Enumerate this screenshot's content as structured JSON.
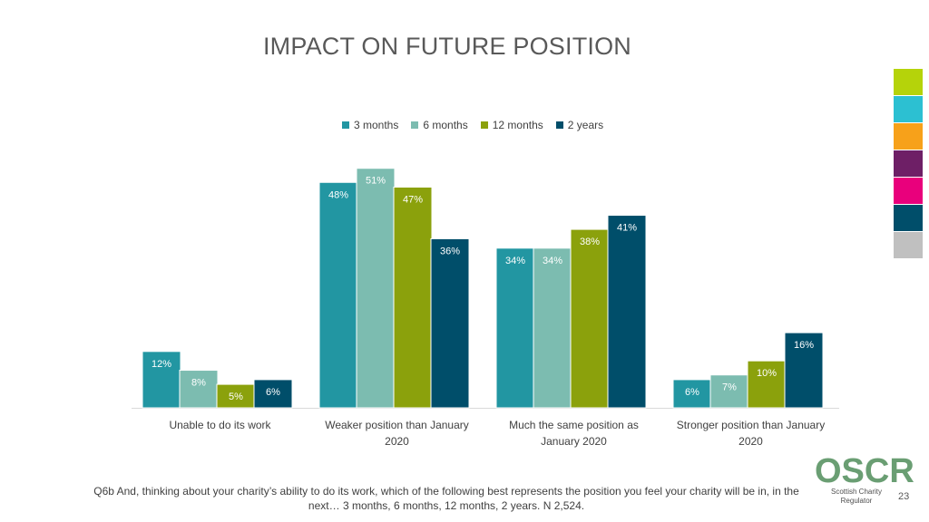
{
  "title": "IMPACT ON FUTURE POSITION",
  "chart_data": {
    "type": "bar",
    "title": "IMPACT ON FUTURE POSITION",
    "categories": [
      [
        "Unable to do its work"
      ],
      [
        "Weaker position than January",
        "2020"
      ],
      [
        "Much the same position as",
        "January 2020"
      ],
      [
        "Stronger position than January",
        "2020"
      ]
    ],
    "series": [
      {
        "name": "3 months",
        "color": "#2296a2",
        "values": [
          12,
          48,
          34,
          6
        ]
      },
      {
        "name": "6 months",
        "color": "#7cbcb0",
        "values": [
          8,
          51,
          34,
          7
        ]
      },
      {
        "name": "12 months",
        "color": "#8ba10c",
        "values": [
          5,
          47,
          38,
          10
        ]
      },
      {
        "name": "2 years",
        "color": "#004e6a",
        "values": [
          6,
          36,
          41,
          16
        ]
      }
    ],
    "value_suffix": "%",
    "xlabel": "",
    "ylabel": "",
    "ylim": [
      0,
      55
    ],
    "grid": false,
    "legend": "top-center"
  },
  "footnote": "Q6b And, thinking about your charity’s ability to do its work, which of the following best represents the position you feel your charity will be in, in the next… 3 months, 6 months, 12 months, 2 years. N 2,524.",
  "logo": {
    "name": "OSCR",
    "subtitle": "Scottish Charity Regulator"
  },
  "page_number": "23",
  "color_strip": [
    "#b5d30a",
    "#2cc0d2",
    "#f7a11a",
    "#6e1f66",
    "#e9007c",
    "#004e6a",
    "#c0c0c0"
  ]
}
